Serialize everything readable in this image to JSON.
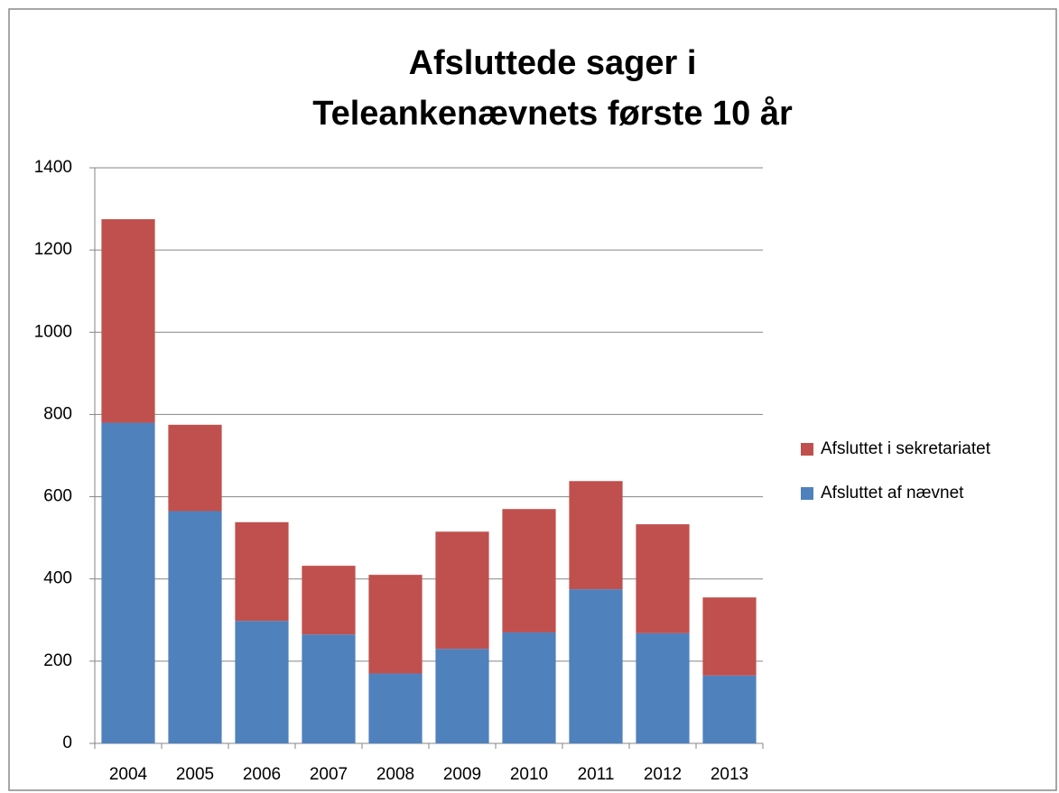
{
  "chart_data": {
    "type": "stacked_bar",
    "title": [
      "Afsluttede sager i",
      "Teleankenævnets første 10 år"
    ],
    "categories": [
      "2004",
      "2005",
      "2006",
      "2007",
      "2008",
      "2009",
      "2010",
      "2011",
      "2012",
      "2013"
    ],
    "series": [
      {
        "name": "Afsluttet af nævnet",
        "color": "#4f81bd",
        "values": [
          780,
          565,
          298,
          265,
          170,
          230,
          270,
          375,
          268,
          165
        ]
      },
      {
        "name": "Afsluttet i sekretariatet",
        "color": "#c0504d",
        "values": [
          495,
          210,
          240,
          167,
          240,
          285,
          300,
          263,
          265,
          190
        ]
      }
    ],
    "ylim": [
      0,
      1400
    ],
    "yticks": [
      0,
      200,
      400,
      600,
      800,
      1000,
      1200,
      1400
    ],
    "grid": true,
    "legend": "right"
  }
}
